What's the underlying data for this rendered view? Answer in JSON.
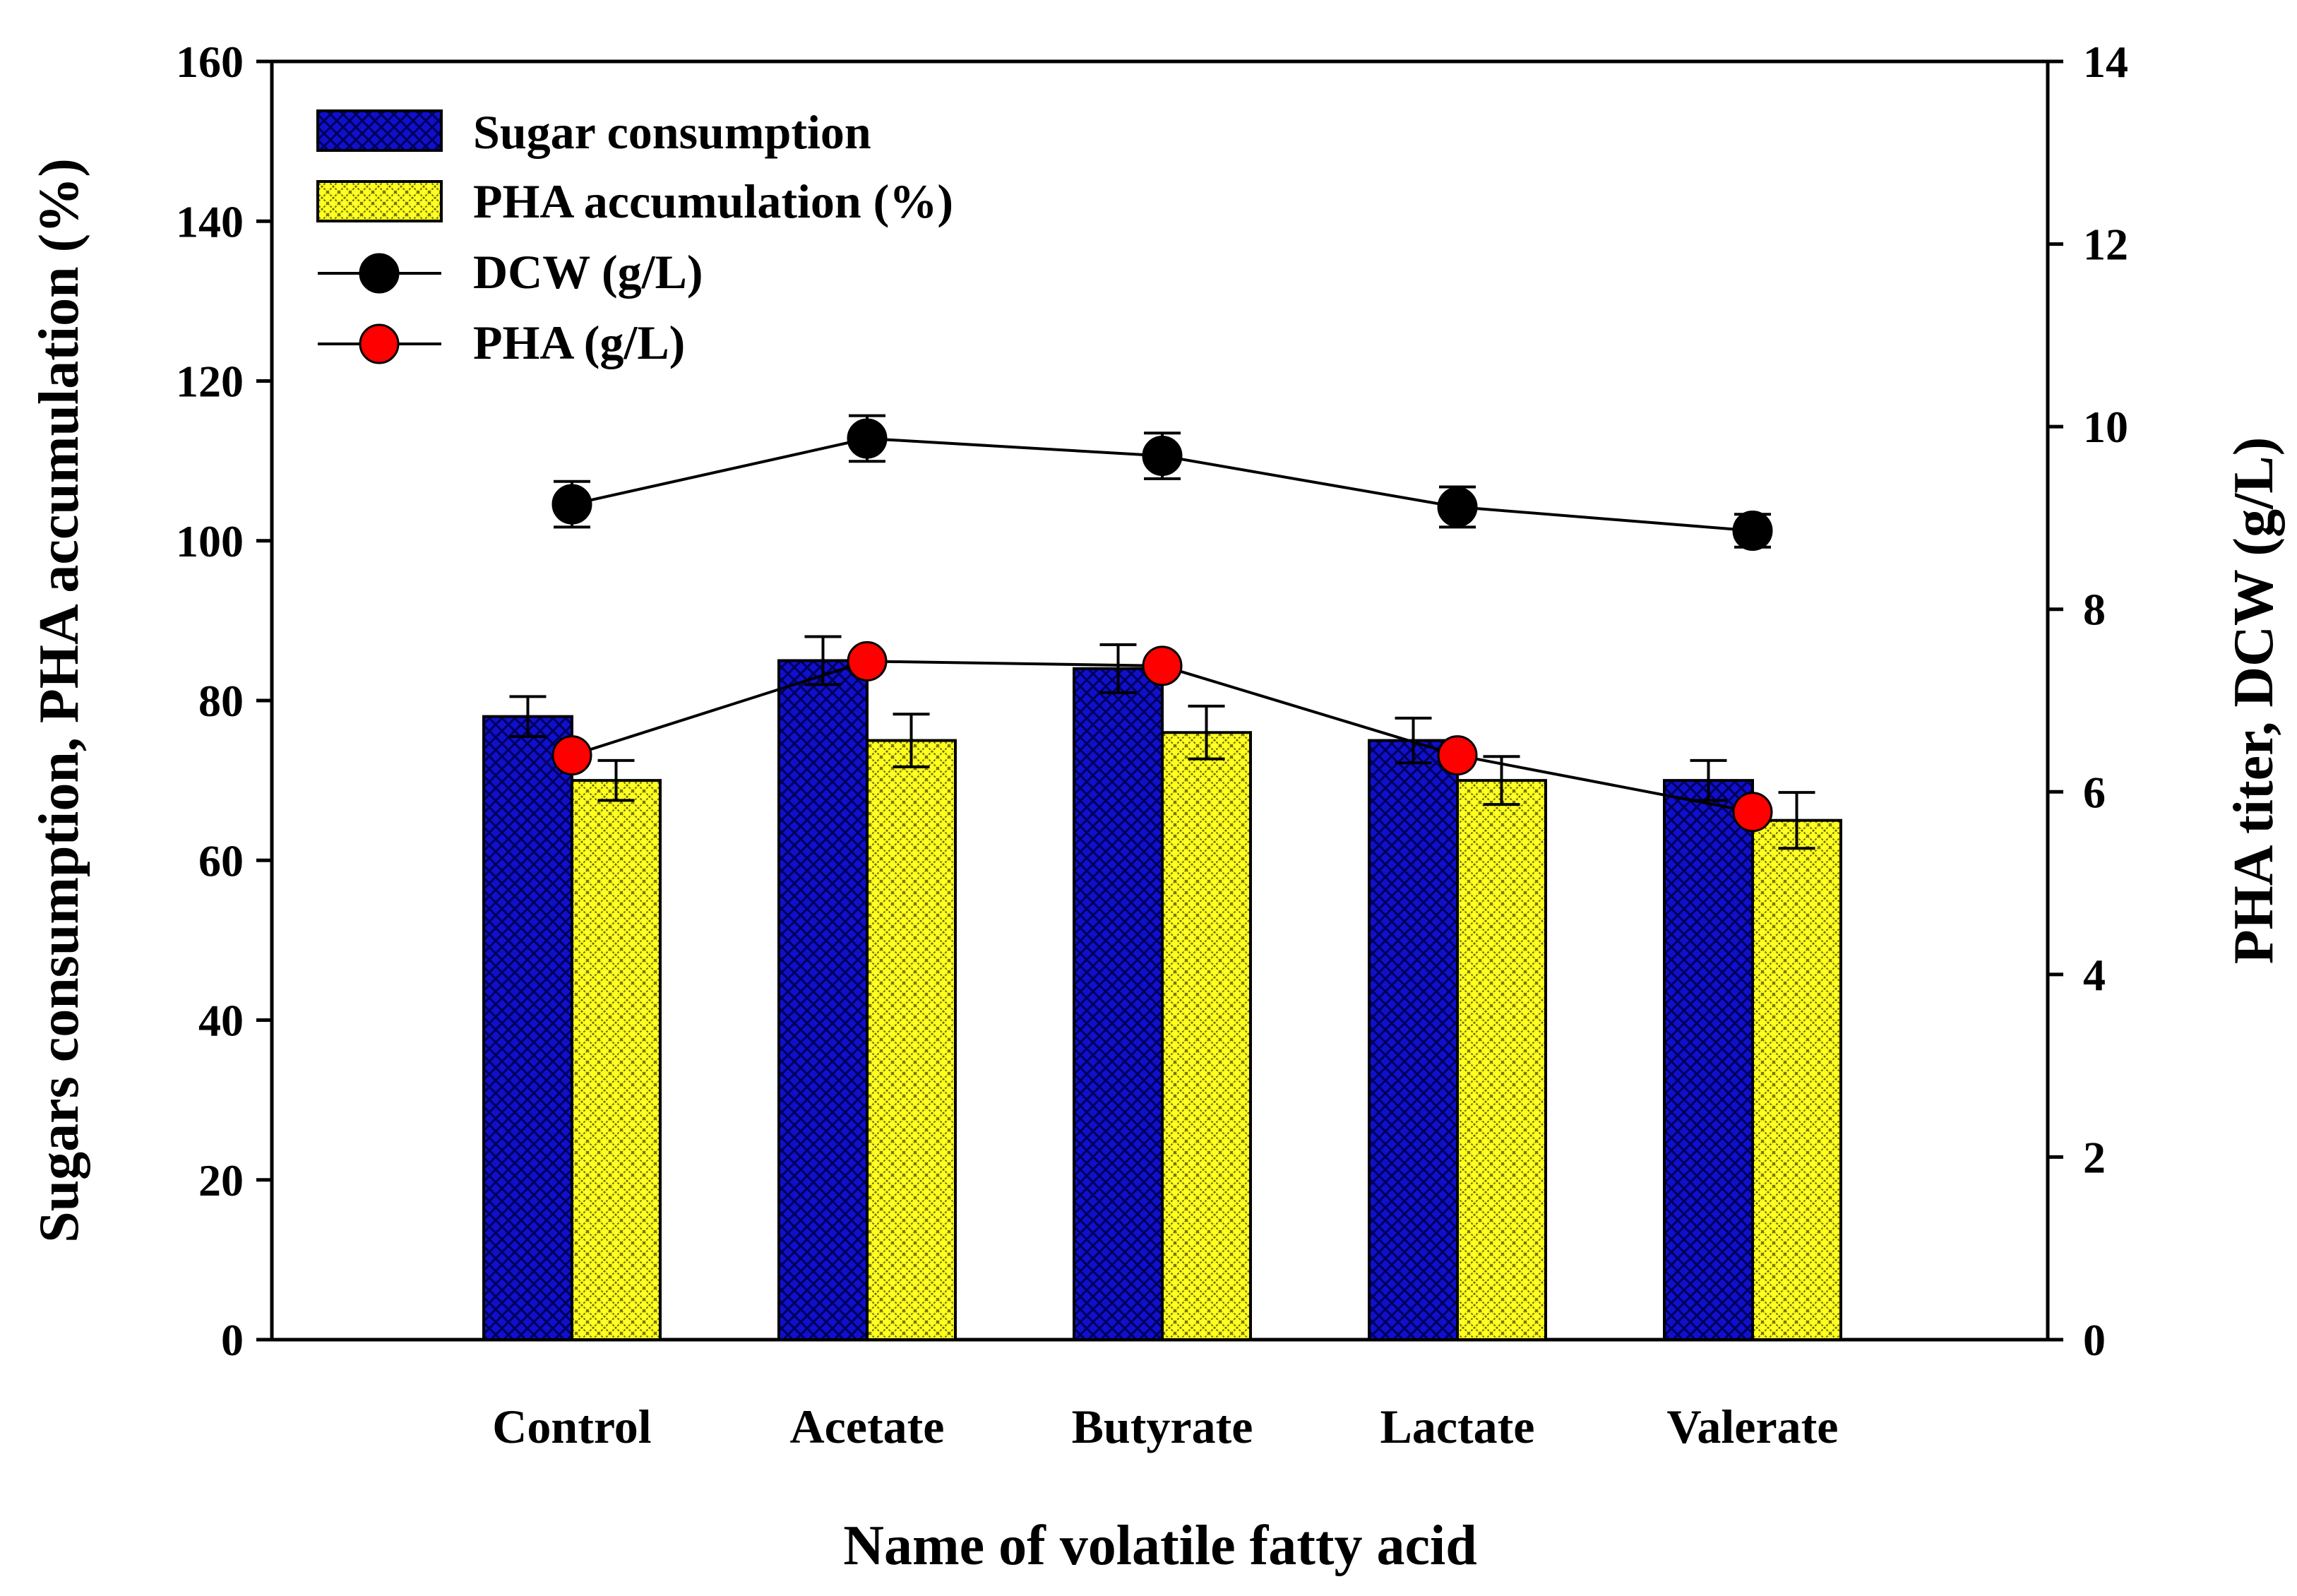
{
  "chart_data": {
    "type": "bar",
    "xlabel": "Name of volatile fatty acid",
    "ylabel": "Sugars consumption, PHA accumulation (%)",
    "y2label": "PHA titer, DCW (g/L)",
    "categories": [
      "Control",
      "Acetate",
      "Butyrate",
      "Lactate",
      "Valerate"
    ],
    "ylim": [
      0,
      160
    ],
    "yticks": [
      0,
      20,
      40,
      60,
      80,
      100,
      120,
      140,
      160
    ],
    "y2lim": [
      0,
      14
    ],
    "y2ticks": [
      0,
      2,
      4,
      6,
      8,
      10,
      12,
      14
    ],
    "legend_position": "top-left",
    "bar_series": [
      {
        "name": "Sugar consumption",
        "values": [
          78,
          85,
          84,
          75,
          70
        ],
        "errors": [
          2.5,
          3,
          3,
          2.8,
          2.5
        ],
        "color": "#1010cc",
        "pattern": "crosshatch"
      },
      {
        "name": "PHA accumulation (%)",
        "values": [
          70,
          75,
          76,
          70,
          65
        ],
        "errors": [
          2.5,
          3.3,
          3.3,
          3,
          3.5
        ],
        "color": "#ffff22",
        "pattern": "crosshatch"
      }
    ],
    "line_series": [
      {
        "name": "DCW (g/L)",
        "values": [
          9.15,
          9.87,
          9.68,
          9.12,
          8.86
        ],
        "errors": [
          0.25,
          0.25,
          0.25,
          0.22,
          0.18
        ],
        "color": "#000000",
        "axis": "right"
      },
      {
        "name": "PHA (g/L)",
        "values": [
          6.4,
          7.43,
          7.38,
          6.4,
          5.78
        ],
        "errors": [
          0,
          0,
          0,
          0,
          0
        ],
        "color": "#ff0000",
        "axis": "right"
      }
    ]
  }
}
